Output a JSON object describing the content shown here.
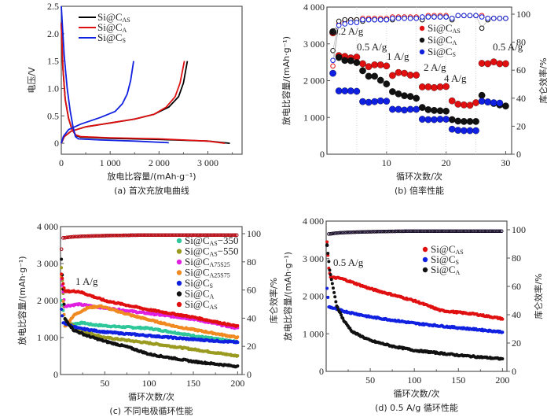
{
  "chart_data": [
    {
      "id": "a",
      "type": "line",
      "caption": "(a) 首次充放电曲线",
      "xlabel": "放电比容量/(mAh·g⁻¹)",
      "ylabel": "电压/V",
      "xlim": [
        0,
        3700
      ],
      "ylim": [
        -0.2,
        2.5
      ],
      "xticks": [
        0,
        1000,
        2000,
        3000
      ],
      "xtick_labels": [
        "0",
        "1 000",
        "2 000",
        "3 000"
      ],
      "yticks": [
        0,
        0.5,
        1.0,
        1.5,
        2.0,
        2.5
      ],
      "ytick_labels": [
        "0",
        "0.5",
        "1.0",
        "1.5",
        "2.0",
        "2.5"
      ],
      "legend": "top-left",
      "series": [
        {
          "name": "Si@C",
          "sub": "AS",
          "color": "#000000",
          "discharge": [
            [
              0,
              2.2
            ],
            [
              30,
              1.4
            ],
            [
              80,
              0.8
            ],
            [
              150,
              0.45
            ],
            [
              220,
              0.25
            ],
            [
              300,
              0.14
            ],
            [
              400,
              0.11
            ],
            [
              1000,
              0.09
            ],
            [
              2000,
              0.07
            ],
            [
              3000,
              0.04
            ],
            [
              3450,
              0.0
            ]
          ],
          "charge": [
            [
              0,
              0.0
            ],
            [
              60,
              0.12
            ],
            [
              200,
              0.22
            ],
            [
              500,
              0.3
            ],
            [
              1000,
              0.37
            ],
            [
              1500,
              0.44
            ],
            [
              1900,
              0.53
            ],
            [
              2200,
              0.66
            ],
            [
              2400,
              0.85
            ],
            [
              2500,
              1.1
            ],
            [
              2580,
              1.5
            ]
          ]
        },
        {
          "name": "Si@C",
          "sub": "A",
          "color": "#e01010",
          "discharge": [
            [
              0,
              2.2
            ],
            [
              30,
              1.4
            ],
            [
              80,
              0.8
            ],
            [
              150,
              0.45
            ],
            [
              220,
              0.25
            ],
            [
              300,
              0.15
            ],
            [
              400,
              0.12
            ],
            [
              1000,
              0.1
            ],
            [
              2000,
              0.08
            ],
            [
              3000,
              0.04
            ],
            [
              3350,
              0.0
            ]
          ],
          "charge": [
            [
              0,
              0.0
            ],
            [
              60,
              0.12
            ],
            [
              200,
              0.22
            ],
            [
              500,
              0.3
            ],
            [
              1000,
              0.37
            ],
            [
              1500,
              0.44
            ],
            [
              1900,
              0.53
            ],
            [
              2150,
              0.66
            ],
            [
              2330,
              0.85
            ],
            [
              2430,
              1.1
            ],
            [
              2520,
              1.5
            ]
          ]
        },
        {
          "name": "Si@C",
          "sub": "S",
          "color": "#1020e0",
          "discharge": [
            [
              0,
              2.5
            ],
            [
              20,
              2.2
            ],
            [
              60,
              1.6
            ],
            [
              120,
              1.0
            ],
            [
              180,
              0.6
            ],
            [
              240,
              0.3
            ],
            [
              290,
              0.12
            ],
            [
              350,
              0.08
            ],
            [
              800,
              0.06
            ],
            [
              1500,
              0.04
            ],
            [
              2200,
              0.01
            ]
          ],
          "charge": [
            [
              0,
              0.0
            ],
            [
              40,
              0.12
            ],
            [
              150,
              0.25
            ],
            [
              400,
              0.35
            ],
            [
              800,
              0.47
            ],
            [
              1100,
              0.58
            ],
            [
              1250,
              0.72
            ],
            [
              1350,
              0.9
            ],
            [
              1420,
              1.15
            ],
            [
              1480,
              1.5
            ]
          ]
        }
      ]
    },
    {
      "id": "b",
      "type": "scatter",
      "caption": "(b) 倍率性能",
      "xlabel": "循环次数/次",
      "ylabel": "放电比容量/(mAh·g⁻¹)",
      "y2label": "库仑效率/%",
      "xlim": [
        0,
        31
      ],
      "ylim": [
        0,
        4000
      ],
      "y2lim": [
        0,
        105
      ],
      "xticks": [
        10,
        20,
        30
      ],
      "yticks": [
        0,
        1000,
        2000,
        3000,
        4000
      ],
      "ytick_labels": [
        "0",
        "1 000",
        "2 000",
        "3 000",
        "4 000"
      ],
      "y2ticks": [
        0,
        20,
        40,
        60,
        80,
        100
      ],
      "vgrid": [
        5,
        10,
        15,
        20,
        25
      ],
      "legend": "top-right",
      "annotations": [
        "0.2 A/g",
        "0.5 A/g",
        "1 A/g",
        "2 A/g",
        "4 A/g",
        "0.5 A/g"
      ],
      "series": [
        {
          "name": "Si@C",
          "sub": "AS",
          "color": "#e01010",
          "capacity": [
            3300,
            2680,
            2660,
            2620,
            2640,
            2460,
            2380,
            2430,
            2430,
            2400,
            2140,
            2220,
            2200,
            2150,
            2150,
            1830,
            1830,
            1810,
            1830,
            1840,
            1450,
            1360,
            1340,
            1330,
            1400,
            2470,
            2460,
            2510,
            2460,
            2460
          ],
          "efficiency": [
            63,
            93,
            95,
            96,
            96,
            97,
            97,
            97,
            97,
            97,
            98,
            98,
            98,
            98,
            98,
            98,
            99,
            99,
            99,
            99,
            97,
            99,
            99,
            99,
            99,
            99,
            97,
            97,
            97,
            97
          ]
        },
        {
          "name": "Si@C",
          "sub": "A",
          "color": "#111111",
          "capacity": [
            3330,
            2630,
            2550,
            2540,
            2490,
            2270,
            2120,
            2120,
            2010,
            1910,
            1700,
            1640,
            1590,
            1570,
            1520,
            1270,
            1210,
            1190,
            1180,
            1170,
            940,
            900,
            890,
            890,
            890,
            1600,
            1420,
            1380,
            1340,
            1310
          ],
          "efficiency": [
            74,
            95,
            96,
            96,
            96,
            95,
            96,
            96,
            96,
            96,
            96,
            97,
            97,
            97,
            97,
            96,
            98,
            98,
            98,
            98,
            96,
            99,
            99,
            99,
            99,
            90,
            96,
            97,
            97,
            97
          ]
        },
        {
          "name": "Si@C",
          "sub": "S",
          "color": "#1020e0",
          "capacity": [
            2200,
            1720,
            1720,
            1720,
            1710,
            1430,
            1410,
            1430,
            1450,
            1440,
            1220,
            1220,
            1200,
            1220,
            1220,
            950,
            940,
            940,
            950,
            950,
            680,
            650,
            640,
            640,
            640,
            1440,
            1420,
            1400,
            1390,
            null
          ],
          "efficiency": [
            67,
            92,
            93,
            94,
            94,
            96,
            96,
            96,
            96,
            96,
            97,
            97,
            97,
            97,
            97,
            98,
            98,
            98,
            98,
            98,
            97,
            99,
            99,
            99,
            99,
            98,
            97,
            97,
            97,
            97
          ]
        }
      ]
    },
    {
      "id": "c",
      "type": "scatter",
      "caption": "(c) 不同电极循环性能",
      "xlabel": "循环次数/次",
      "ylabel": "放电比容量/(mAh·g⁻¹)",
      "y2label": "库仑效率/%",
      "xlim": [
        0,
        205
      ],
      "ylim": [
        0,
        4000
      ],
      "y2lim": [
        0,
        105
      ],
      "xticks": [
        50,
        100,
        150,
        200
      ],
      "yticks": [
        0,
        1000,
        2000,
        3000,
        4000
      ],
      "ytick_labels": [
        "0",
        "1 000",
        "2 000",
        "3 000",
        "4 000"
      ],
      "y2ticks": [
        0,
        20,
        40,
        60,
        80,
        100
      ],
      "legend": "top-right",
      "annotation": "1 A/g",
      "efficiency_steady": 99,
      "series": [
        {
          "name": "Si@C",
          "sub": "AS",
          "suffix": "−350",
          "color": "#2ec79a",
          "capacity_keypoints": [
            [
              1,
              2000
            ],
            [
              5,
              1500
            ],
            [
              10,
              1350
            ],
            [
              25,
              1400
            ],
            [
              35,
              1350
            ],
            [
              60,
              1300
            ],
            [
              100,
              1250
            ],
            [
              150,
              1050
            ],
            [
              200,
              880
            ]
          ]
        },
        {
          "name": "Si@C",
          "sub": "AS",
          "suffix": "−550",
          "color": "#9a9a20",
          "capacity_keypoints": [
            [
              1,
              2900
            ],
            [
              5,
              1500
            ],
            [
              20,
              1200
            ],
            [
              50,
              1000
            ],
            [
              100,
              850
            ],
            [
              150,
              680
            ],
            [
              200,
              500
            ]
          ]
        },
        {
          "name": "Si@C",
          "sub": "A75S25",
          "suffix": "",
          "color": "#e020e0",
          "capacity_keypoints": [
            [
              1,
              2600
            ],
            [
              5,
              1850
            ],
            [
              20,
              1900
            ],
            [
              50,
              1800
            ],
            [
              100,
              1650
            ],
            [
              150,
              1500
            ],
            [
              200,
              1250
            ]
          ]
        },
        {
          "name": "Si@C",
          "sub": "A25S75",
          "suffix": "",
          "color": "#f08a20",
          "capacity_keypoints": [
            [
              1,
              2650
            ],
            [
              5,
              1300
            ],
            [
              15,
              1600
            ],
            [
              30,
              1800
            ],
            [
              45,
              1850
            ],
            [
              80,
              1600
            ],
            [
              130,
              1300
            ],
            [
              200,
              1000
            ]
          ]
        },
        {
          "name": "Si@C",
          "sub": "S",
          "suffix": "",
          "color": "#1020e0",
          "capacity_keypoints": [
            [
              1,
              1750
            ],
            [
              3,
              1400
            ],
            [
              20,
              1250
            ],
            [
              50,
              1150
            ],
            [
              100,
              1050
            ],
            [
              150,
              950
            ],
            [
              200,
              870
            ]
          ]
        },
        {
          "name": "Si@C",
          "sub": "A",
          "suffix": "",
          "color": "#111111",
          "capacity_keypoints": [
            [
              1,
              3100
            ],
            [
              5,
              1500
            ],
            [
              15,
              1200
            ],
            [
              30,
              1050
            ],
            [
              50,
              900
            ],
            [
              75,
              750
            ],
            [
              100,
              550
            ],
            [
              150,
              350
            ],
            [
              200,
              220
            ]
          ]
        },
        {
          "name": "Si@C",
          "sub": "AS",
          "suffix": "",
          "color": "#e01010",
          "capacity_keypoints": [
            [
              1,
              2700
            ],
            [
              5,
              2250
            ],
            [
              20,
              2250
            ],
            [
              50,
              2000
            ],
            [
              100,
              1750
            ],
            [
              150,
              1550
            ],
            [
              200,
              1300
            ]
          ]
        }
      ]
    },
    {
      "id": "d",
      "type": "scatter",
      "caption": "(d) 0.5 A/g 循环性能",
      "xlabel": "循环次数/次",
      "ylabel": "放电比容量/(mAh·g⁻¹)",
      "y2label": "库仑效率/%",
      "xlim": [
        0,
        205
      ],
      "ylim": [
        0,
        4000
      ],
      "y2lim": [
        0,
        105
      ],
      "xticks": [
        50,
        100,
        150,
        200
      ],
      "yticks": [
        0,
        1000,
        2000,
        3000,
        4000
      ],
      "ytick_labels": [
        "0",
        "1 000",
        "2 000",
        "3 000",
        "4 000"
      ],
      "y2ticks": [
        0,
        20,
        40,
        60,
        80,
        100
      ],
      "legend": "top-right",
      "annotation": "0.5 A/g",
      "efficiency_steady": 99,
      "series": [
        {
          "name": "Si@C",
          "sub": "AS",
          "color": "#e01010",
          "capacity_keypoints": [
            [
              1,
              3450
            ],
            [
              3,
              2750
            ],
            [
              5,
              2500
            ],
            [
              15,
              2480
            ],
            [
              20,
              2450
            ],
            [
              50,
              2200
            ],
            [
              100,
              1880
            ],
            [
              130,
              1620
            ],
            [
              170,
              1520
            ],
            [
              200,
              1400
            ]
          ]
        },
        {
          "name": "Si@C",
          "sub": "S",
          "color": "#1020e0",
          "capacity_keypoints": [
            [
              1,
              2200
            ],
            [
              3,
              1720
            ],
            [
              20,
              1600
            ],
            [
              50,
              1450
            ],
            [
              100,
              1280
            ],
            [
              150,
              1160
            ],
            [
              200,
              1050
            ]
          ]
        },
        {
          "name": "Si@C",
          "sub": "A",
          "color": "#111111",
          "capacity_keypoints": [
            [
              1,
              3350
            ],
            [
              4,
              2700
            ],
            [
              8,
              2200
            ],
            [
              12,
              1750
            ],
            [
              20,
              1350
            ],
            [
              30,
              1050
            ],
            [
              50,
              820
            ],
            [
              75,
              670
            ],
            [
              100,
              560
            ],
            [
              150,
              430
            ],
            [
              200,
              330
            ]
          ]
        }
      ]
    }
  ]
}
